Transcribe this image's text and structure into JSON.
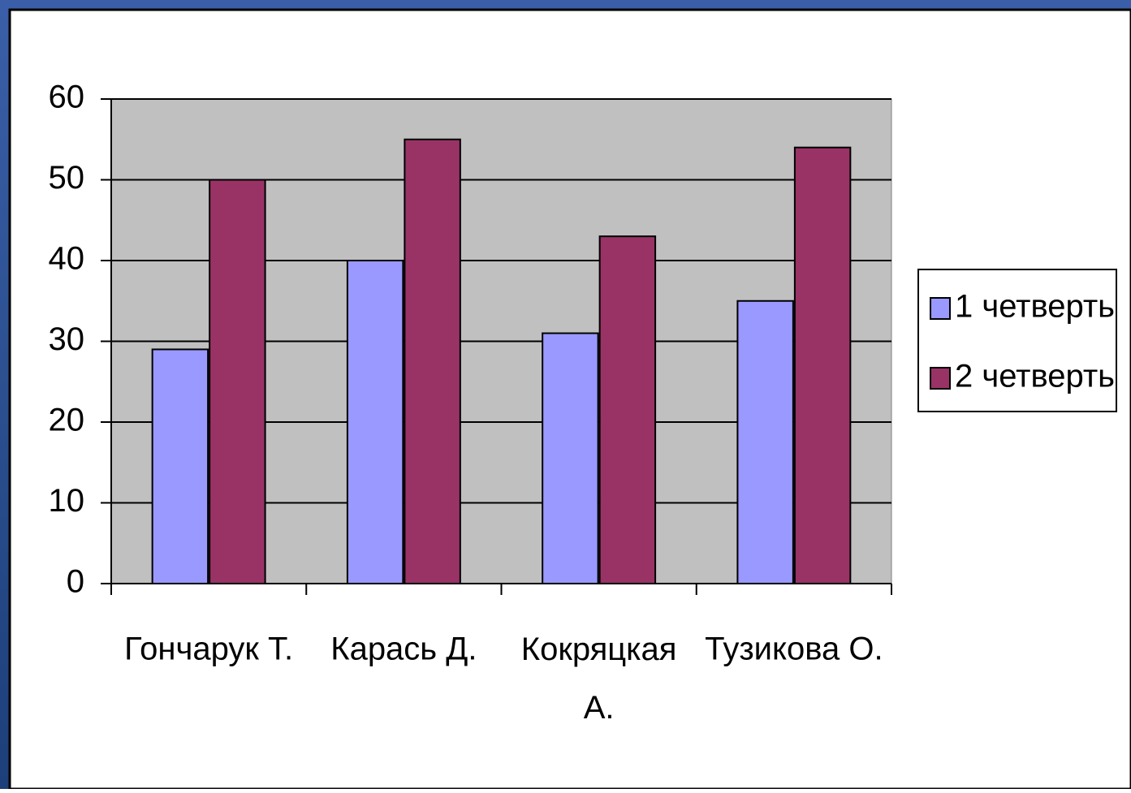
{
  "chart_data": {
    "type": "bar",
    "categories": [
      "Гончарук Т.",
      "Карась Д.",
      "Кокряцкая А.",
      "Тузикова О."
    ],
    "series": [
      {
        "name": "1 четверть",
        "color": "#9999ff",
        "values": [
          29,
          40,
          31,
          35
        ]
      },
      {
        "name": "2 четверть",
        "color": "#993366",
        "values": [
          50,
          55,
          43,
          54
        ]
      }
    ],
    "ylim": [
      0,
      60
    ],
    "yticks": [
      0,
      10,
      20,
      30,
      40,
      50,
      60
    ],
    "grid": true,
    "legend": "right"
  }
}
